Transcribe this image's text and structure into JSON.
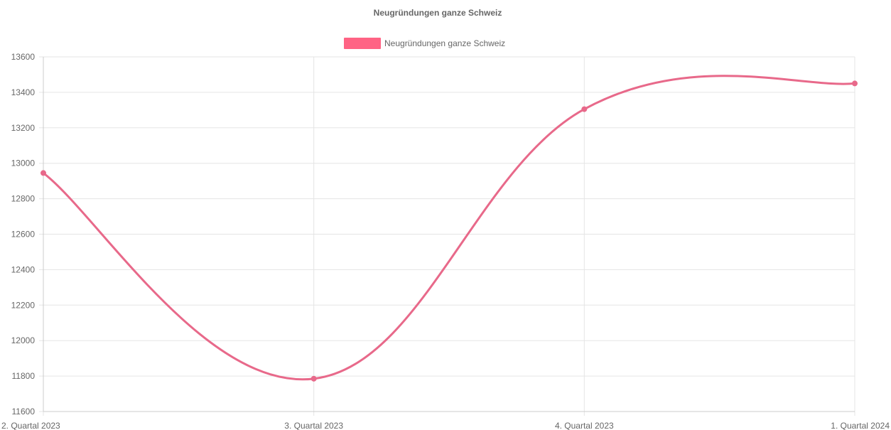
{
  "chart_data": {
    "type": "line",
    "title": "Neugründungen ganze Schweiz",
    "categories": [
      "2. Quartal 2023",
      "3. Quartal 2023",
      "4. Quartal 2023",
      "1. Quartal 2024"
    ],
    "series": [
      {
        "name": "Neugründungen ganze Schweiz",
        "values": [
          12945,
          11785,
          13305,
          13450
        ],
        "color": "#e8698a",
        "legend_color": "#ff6384"
      }
    ],
    "ylim": [
      11600,
      13600
    ],
    "yticks": [
      11600,
      11800,
      12000,
      12200,
      12400,
      12600,
      12800,
      13000,
      13200,
      13400,
      13600
    ],
    "xlabel": "",
    "ylabel": "",
    "grid": true,
    "legend_position": "top",
    "smooth": true
  }
}
